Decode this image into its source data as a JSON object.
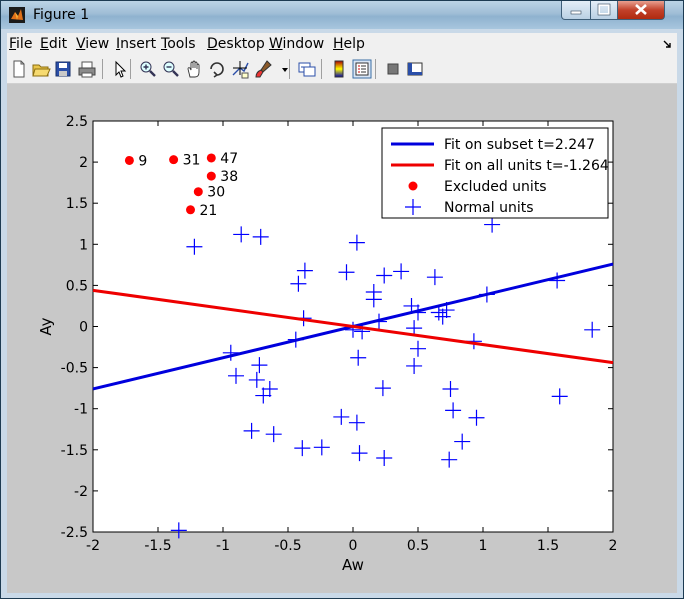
{
  "window": {
    "title": "Figure 1"
  },
  "menus": [
    {
      "label": "File",
      "key": "F",
      "rest": "ile"
    },
    {
      "label": "Edit",
      "key": "E",
      "rest": "dit"
    },
    {
      "label": "View",
      "key": "V",
      "rest": "iew"
    },
    {
      "label": "Insert",
      "key": "I",
      "rest": "nsert"
    },
    {
      "label": "Tools",
      "key": "T",
      "rest": "ools"
    },
    {
      "label": "Desktop",
      "key": "D",
      "rest": "esktop"
    },
    {
      "label": "Window",
      "key": "W",
      "rest": "indow"
    },
    {
      "label": "Help",
      "key": "H",
      "rest": "elp"
    }
  ],
  "toolbar_icons": [
    "new-file-icon",
    "open-folder-icon",
    "save-icon",
    "print-icon",
    "pointer-icon",
    "zoom-in-icon",
    "zoom-out-icon",
    "pan-hand-icon",
    "rotate-3d-icon",
    "data-cursor-icon",
    "brush-icon",
    "brush-dropdown-icon",
    "link-plot-icon",
    "colorbar-icon",
    "legend-icon",
    "hide-plot-tools-icon",
    "show-plot-tools-icon"
  ],
  "colors": {
    "fit_subset": "#0000dd",
    "fit_all": "#ee0000",
    "excluded": "#ff0000",
    "normal": "#0000ff",
    "figure_bg": "#c8c8c8"
  },
  "chart_data": {
    "type": "scatter",
    "xlabel": "Aw",
    "ylabel": "Ay",
    "xlim": [
      -2,
      2
    ],
    "ylim": [
      -2.5,
      2.5
    ],
    "xticks": [
      "-2",
      "-1.5",
      "-1",
      "-0.5",
      "0",
      "0.5",
      "1",
      "1.5",
      "2"
    ],
    "yticks": [
      "-2.5",
      "-2",
      "-1.5",
      "-1",
      "-0.5",
      "0",
      "0.5",
      "1",
      "1.5",
      "2",
      "2.5"
    ],
    "series": [
      {
        "name": "Fit on subset t=2.247",
        "kind": "line",
        "x": [
          -2,
          2
        ],
        "y": [
          -0.76,
          0.76
        ]
      },
      {
        "name": "Fit on all units t=-1.264",
        "kind": "line",
        "x": [
          -2,
          2
        ],
        "y": [
          0.44,
          -0.44
        ]
      },
      {
        "name": "Excluded units",
        "kind": "dot",
        "points": [
          {
            "x": -1.72,
            "y": 2.02,
            "label": "9"
          },
          {
            "x": -1.38,
            "y": 2.03,
            "label": "31"
          },
          {
            "x": -1.09,
            "y": 2.05,
            "label": "47"
          },
          {
            "x": -1.09,
            "y": 1.83,
            "label": "38"
          },
          {
            "x": -1.19,
            "y": 1.64,
            "label": "30"
          },
          {
            "x": -1.25,
            "y": 1.42,
            "label": "21"
          }
        ]
      },
      {
        "name": "Normal units",
        "kind": "plus",
        "points": [
          {
            "x": -1.22,
            "y": 0.97
          },
          {
            "x": -0.86,
            "y": 1.12
          },
          {
            "x": -0.71,
            "y": 1.09
          },
          {
            "x": 0.03,
            "y": 1.02
          },
          {
            "x": 1.07,
            "y": 1.24
          },
          {
            "x": -0.05,
            "y": 0.66
          },
          {
            "x": -0.37,
            "y": 0.68
          },
          {
            "x": -0.42,
            "y": 0.52
          },
          {
            "x": 0.24,
            "y": 0.62
          },
          {
            "x": 0.37,
            "y": 0.67
          },
          {
            "x": 0.63,
            "y": 0.6
          },
          {
            "x": 0.16,
            "y": 0.42
          },
          {
            "x": 0.16,
            "y": 0.33
          },
          {
            "x": 0.45,
            "y": 0.25
          },
          {
            "x": 0.5,
            "y": 0.17
          },
          {
            "x": 0.66,
            "y": 0.17
          },
          {
            "x": 0.72,
            "y": 0.2
          },
          {
            "x": 1.03,
            "y": 0.39
          },
          {
            "x": 1.57,
            "y": 0.56
          },
          {
            "x": 1.84,
            "y": -0.04
          },
          {
            "x": -0.38,
            "y": 0.1
          },
          {
            "x": 0.2,
            "y": 0.06
          },
          {
            "x": 0.47,
            "y": -0.02
          },
          {
            "x": 0.69,
            "y": 0.12
          },
          {
            "x": 0.0,
            "y": -0.04
          },
          {
            "x": 0.07,
            "y": -0.06
          },
          {
            "x": -0.94,
            "y": -0.32
          },
          {
            "x": -0.44,
            "y": -0.16
          },
          {
            "x": 0.5,
            "y": -0.27
          },
          {
            "x": 0.93,
            "y": -0.18
          },
          {
            "x": 0.04,
            "y": -0.38
          },
          {
            "x": 0.47,
            "y": -0.48
          },
          {
            "x": -0.9,
            "y": -0.6
          },
          {
            "x": -0.72,
            "y": -0.47
          },
          {
            "x": -0.74,
            "y": -0.65
          },
          {
            "x": -0.69,
            "y": -0.84
          },
          {
            "x": -0.64,
            "y": -0.76
          },
          {
            "x": 0.23,
            "y": -0.75
          },
          {
            "x": 0.75,
            "y": -0.76
          },
          {
            "x": 1.59,
            "y": -0.85
          },
          {
            "x": 0.77,
            "y": -1.02
          },
          {
            "x": 0.95,
            "y": -1.11
          },
          {
            "x": -0.09,
            "y": -1.1
          },
          {
            "x": 0.03,
            "y": -1.17
          },
          {
            "x": -0.78,
            "y": -1.27
          },
          {
            "x": -0.61,
            "y": -1.31
          },
          {
            "x": 0.84,
            "y": -1.4
          },
          {
            "x": -0.39,
            "y": -1.48
          },
          {
            "x": -0.24,
            "y": -1.47
          },
          {
            "x": 0.05,
            "y": -1.54
          },
          {
            "x": 0.24,
            "y": -1.6
          },
          {
            "x": 0.74,
            "y": -1.62
          },
          {
            "x": -1.34,
            "y": -2.48
          }
        ]
      }
    ],
    "legend_position": "top-right",
    "grid": false
  }
}
